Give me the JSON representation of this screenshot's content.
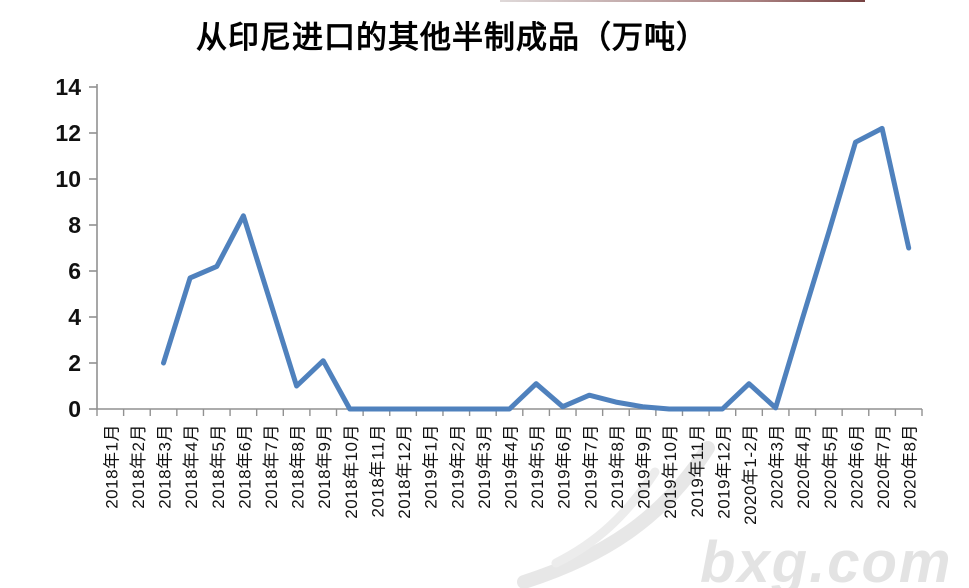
{
  "chart_data": {
    "type": "line",
    "title": "从印尼进口的其他半制成品（万吨）",
    "categories": [
      "2018年1月",
      "2018年2月",
      "2018年3月",
      "2018年4月",
      "2018年5月",
      "2018年6月",
      "2018年7月",
      "2018年8月",
      "2018年9月",
      "2018年10月",
      "2018年11月",
      "2018年12月",
      "2019年1月",
      "2019年2月",
      "2019年3月",
      "2019年4月",
      "2019年5月",
      "2019年6月",
      "2019年7月",
      "2019年8月",
      "2019年9月",
      "2019年10月",
      "2019年11月",
      "2019年12月",
      "2020年1-2月",
      "2020年3月",
      "2020年4月",
      "2020年5月",
      "2020年6月",
      "2020年7月",
      "2020年8月"
    ],
    "values": [
      null,
      null,
      2,
      5.7,
      6.2,
      8.4,
      4.7,
      1,
      2.1,
      0,
      0,
      0,
      0,
      0,
      0,
      0,
      1.1,
      0.1,
      0.6,
      0.3,
      0.1,
      0,
      0,
      0,
      1.1,
      0.05,
      3.9,
      7.7,
      11.6,
      12.2,
      7
    ],
    "xlabel": "",
    "ylabel": "",
    "ylim": [
      0,
      14
    ],
    "yticks": [
      0,
      2,
      4,
      6,
      8,
      10,
      12,
      14
    ],
    "grid": false,
    "legend": "none",
    "line_color": "#4F81BD",
    "axis_color": "#919191",
    "label_color": "#111111"
  },
  "watermark": {
    "text": "bxg.com",
    "color": "#e3e3e3"
  }
}
